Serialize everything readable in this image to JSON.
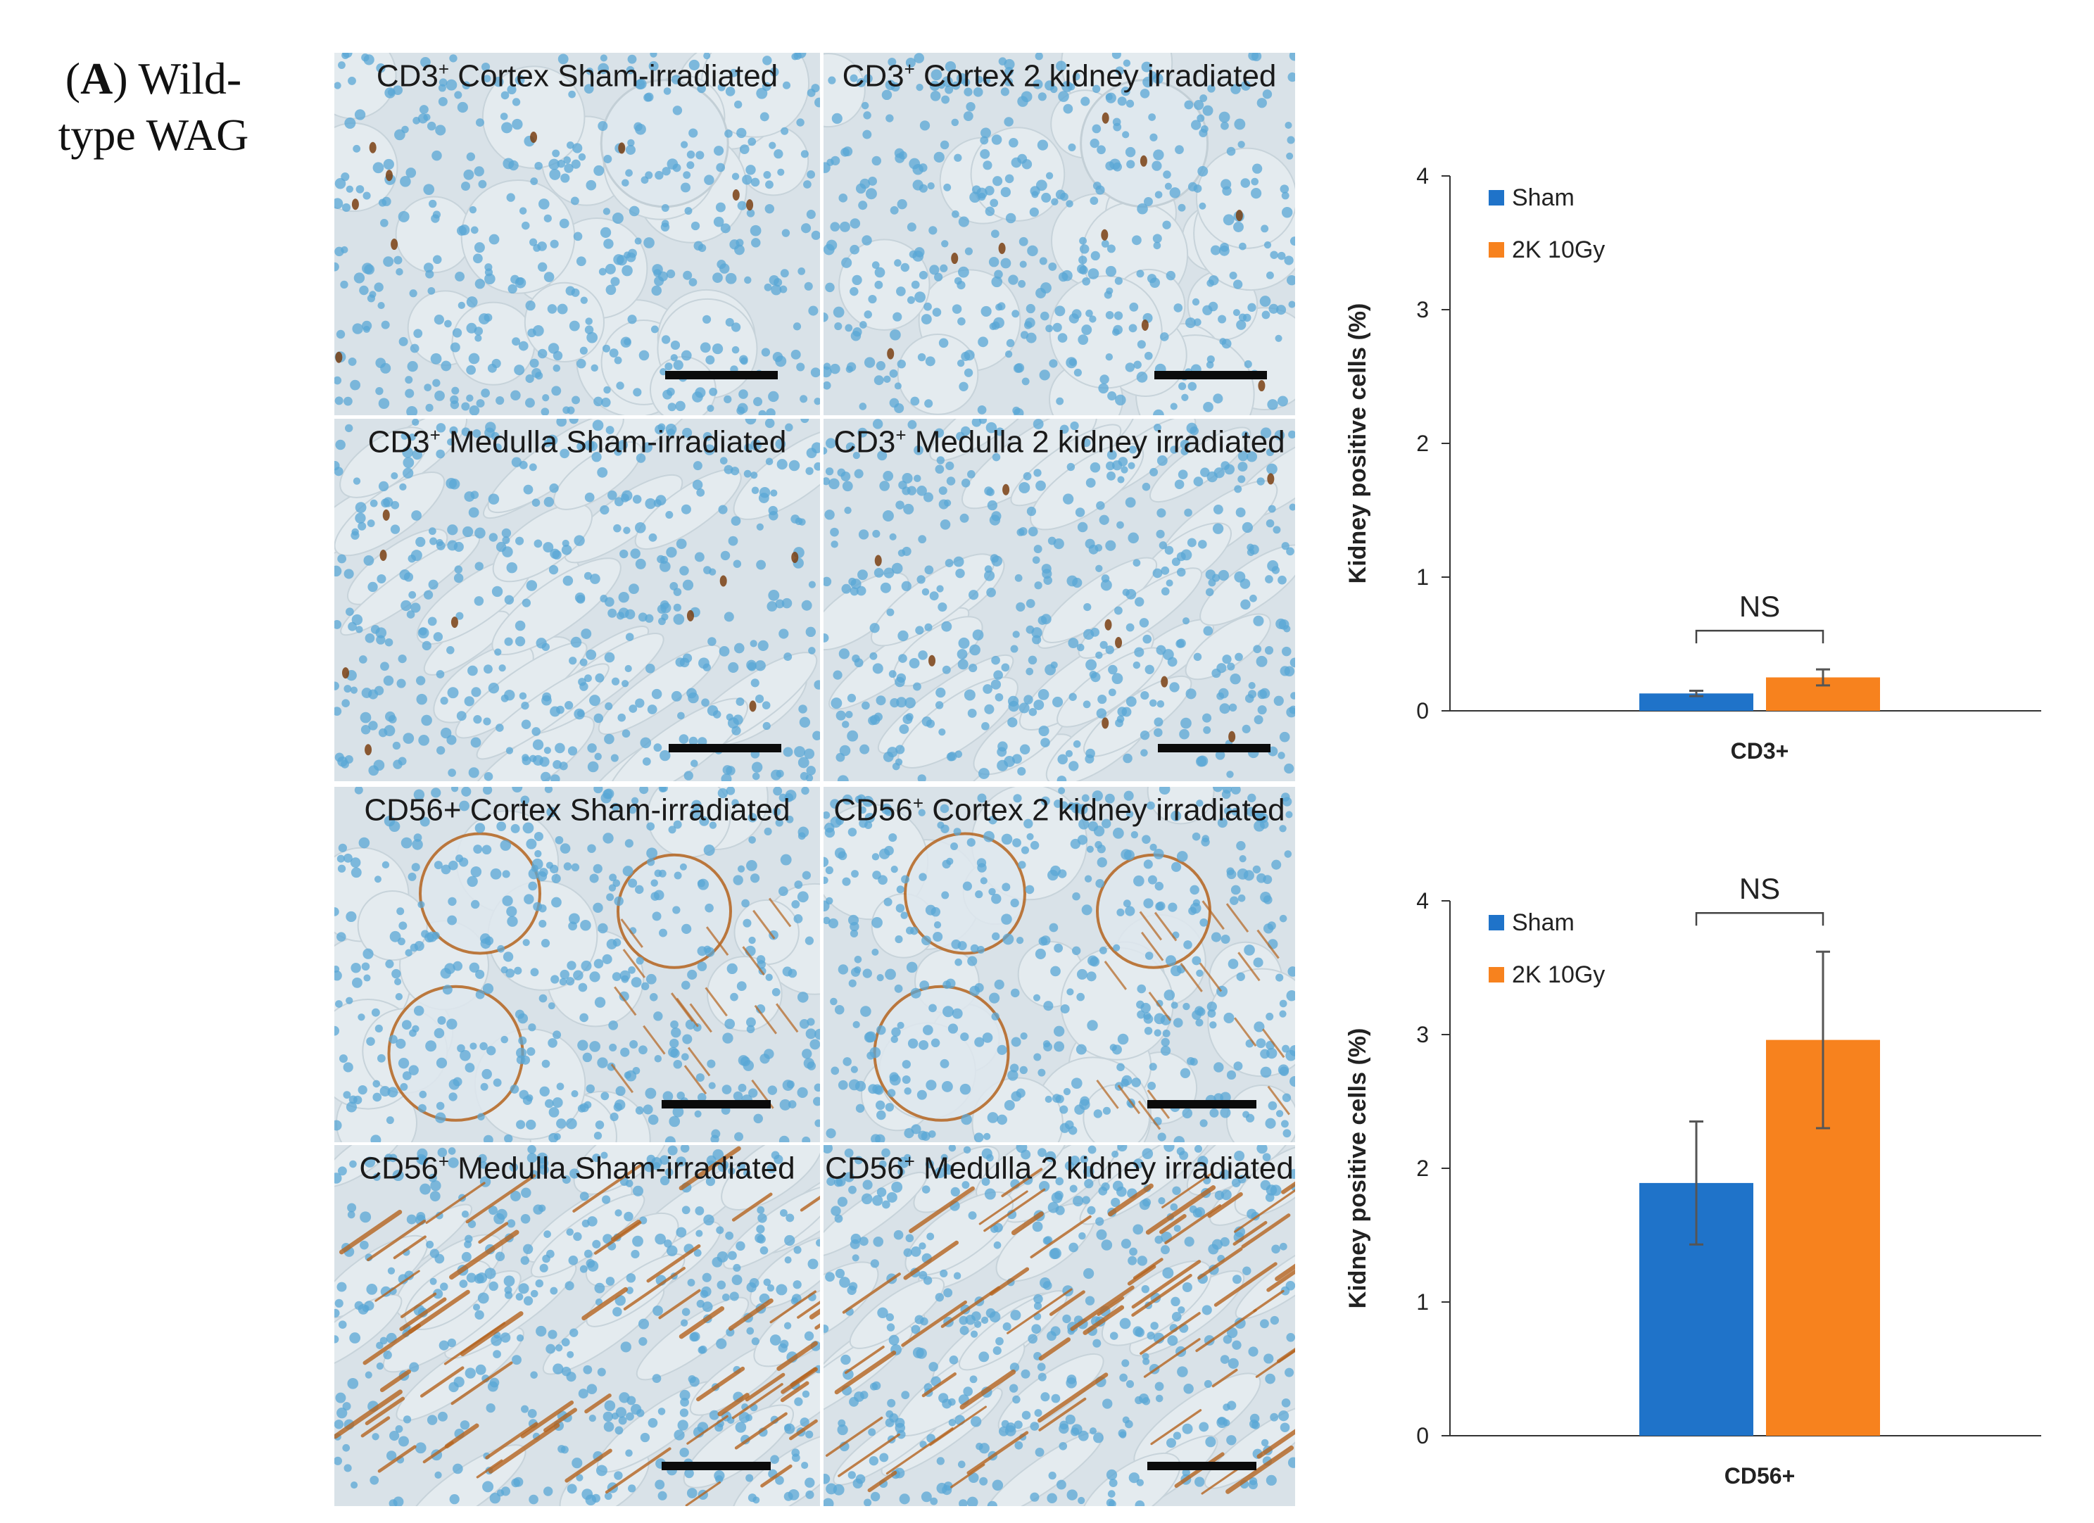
{
  "panel_label": {
    "letter": "A",
    "pre": "(",
    "post": ") Wild-",
    "line2": "type WAG"
  },
  "micrographs": [
    {
      "stain": "CD3",
      "sup": "+",
      "rest": " Cortex Sham-irradiated",
      "pattern": "cortex",
      "brown": "low",
      "seed": 11
    },
    {
      "stain": "CD3",
      "sup": "+",
      "rest": " Cortex 2 kidney irradiated",
      "pattern": "cortex",
      "brown": "low",
      "seed": 23
    },
    {
      "stain": "CD3",
      "sup": "+",
      "rest": " Medulla Sham-irradiated",
      "pattern": "medulla",
      "brown": "low",
      "seed": 37
    },
    {
      "stain": "CD3",
      "sup": "+",
      "rest": " Medulla 2 kidney irradiated",
      "pattern": "medulla",
      "brown": "low",
      "seed": 41
    },
    {
      "stain": "CD56+",
      "sup": "",
      "rest": " Cortex Sham-irradiated",
      "pattern": "cortex",
      "brown": "ring",
      "seed": 53
    },
    {
      "stain": "CD56",
      "sup": "+",
      "rest": " Cortex 2 kidney irradiated",
      "pattern": "cortex",
      "brown": "ring",
      "seed": 67
    },
    {
      "stain": "CD56",
      "sup": "+",
      "rest": " Medulla Sham-irradiated",
      "pattern": "medulla",
      "brown": "high",
      "seed": 71
    },
    {
      "stain": "CD56",
      "sup": "+",
      "rest": " Medulla 2 kidney irradiated",
      "pattern": "medulla",
      "brown": "high",
      "seed": 83
    }
  ],
  "colors": {
    "sham": "#1f73c9",
    "irradiated": "#f7821e",
    "tissue": "#d9e2e8",
    "nuclei": "#5aa7d6",
    "brown": "#b5641f"
  },
  "chart_data": [
    {
      "type": "bar",
      "categories": [
        "CD3+"
      ],
      "series": [
        {
          "name": "Sham",
          "values": [
            0.13
          ],
          "error": [
            0.02
          ]
        },
        {
          "name": "2K 10Gy",
          "values": [
            0.25
          ],
          "error": [
            0.06
          ]
        }
      ],
      "ylabel": "Kidney positive cells (%)",
      "ylim": [
        0,
        4
      ],
      "yticks": [
        "0",
        "1",
        "2",
        "3",
        "4"
      ],
      "annotation": "NS",
      "legend": "top-left"
    },
    {
      "type": "bar",
      "categories": [
        "CD56+"
      ],
      "series": [
        {
          "name": "Sham",
          "values": [
            1.89
          ],
          "error": [
            0.46
          ]
        },
        {
          "name": "2K 10Gy",
          "values": [
            2.96
          ],
          "error": [
            0.66
          ]
        }
      ],
      "ylabel": "Kidney positive cells (%)",
      "ylim": [
        0,
        4
      ],
      "yticks": [
        "0",
        "1",
        "2",
        "3",
        "4"
      ],
      "annotation": "NS",
      "legend": "top-left"
    }
  ]
}
